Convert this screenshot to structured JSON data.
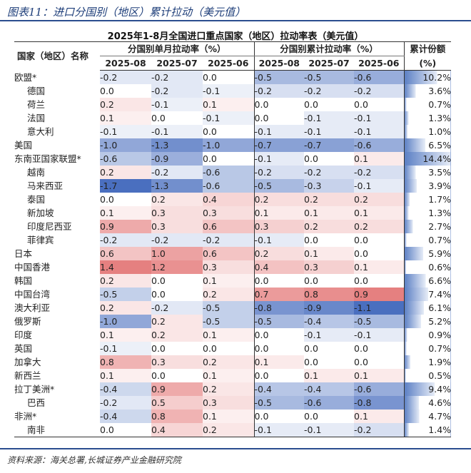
{
  "figure_title": "图表11：进口分国别（地区）累计拉动（美元值）",
  "table_title": "2025年1-8月全国进口重点国家（地区）拉动率表（美元值）",
  "headers": {
    "country": "国家（地区）名称",
    "monthly_group": "分国别单月拉动率（%）",
    "cumulative_group": "分国别累计拉动率（%）",
    "share": "累计份额",
    "share_unit": "(%)",
    "months": [
      "2025-08",
      "2025-07",
      "2025-06"
    ]
  },
  "rows": [
    {
      "name": "欧盟*",
      "sub": false,
      "m": [
        "-0.2",
        "-0.2",
        "0.0"
      ],
      "c": [
        "-0.5",
        "-0.5",
        "-0.6"
      ],
      "share": "10.2%"
    },
    {
      "name": "德国",
      "sub": true,
      "m": [
        "0.0",
        "-0.2",
        "-0.1"
      ],
      "c": [
        "-0.2",
        "-0.2",
        "-0.2"
      ],
      "share": "3.6%"
    },
    {
      "name": "荷兰",
      "sub": true,
      "m": [
        "0.2",
        "-0.1",
        "0.1"
      ],
      "c": [
        "0.0",
        "0.0",
        "0.0"
      ],
      "share": "0.7%"
    },
    {
      "name": "法国",
      "sub": true,
      "m": [
        "0.1",
        "0.0",
        "-0.1"
      ],
      "c": [
        "0.0",
        "-0.1",
        "-0.1"
      ],
      "share": "1.3%"
    },
    {
      "name": "意大利",
      "sub": true,
      "m": [
        "-0.1",
        "-0.1",
        "0.0"
      ],
      "c": [
        "-0.1",
        "-0.1",
        "-0.1"
      ],
      "share": "1.0%"
    },
    {
      "name": "美国",
      "sub": false,
      "m": [
        "-1.0",
        "-1.3",
        "-1.0"
      ],
      "c": [
        "-0.7",
        "-0.7",
        "-0.6"
      ],
      "share": "6.5%"
    },
    {
      "name": "东南亚国家联盟*",
      "sub": false,
      "m": [
        "-0.6",
        "-0.9",
        "0.0"
      ],
      "c": [
        "-0.1",
        "0.0",
        "0.1"
      ],
      "share": "14.4%"
    },
    {
      "name": "越南",
      "sub": true,
      "m": [
        "0.2",
        "-0.2",
        "-0.6"
      ],
      "c": [
        "-0.2",
        "-0.2",
        "-0.2"
      ],
      "share": "3.5%"
    },
    {
      "name": "马来西亚",
      "sub": true,
      "m": [
        "-1.7",
        "-1.3",
        "-0.6"
      ],
      "c": [
        "-0.5",
        "-0.3",
        "-0.1"
      ],
      "share": "3.9%"
    },
    {
      "name": "泰国",
      "sub": true,
      "m": [
        "0.0",
        "0.2",
        "0.4"
      ],
      "c": [
        "0.2",
        "0.2",
        "0.2"
      ],
      "share": "1.7%"
    },
    {
      "name": "新加坡",
      "sub": true,
      "m": [
        "0.1",
        "0.3",
        "0.3"
      ],
      "c": [
        "0.1",
        "0.1",
        "0.1"
      ],
      "share": "1.3%"
    },
    {
      "name": "印度尼西亚",
      "sub": true,
      "m": [
        "0.9",
        "0.3",
        "0.6"
      ],
      "c": [
        "0.3",
        "0.2",
        "0.2"
      ],
      "share": "2.7%"
    },
    {
      "name": "菲律宾",
      "sub": true,
      "m": [
        "-0.2",
        "-0.2",
        "-0.2"
      ],
      "c": [
        "-0.1",
        "0.0",
        "0.0"
      ],
      "share": "0.7%"
    },
    {
      "name": "日本",
      "sub": false,
      "m": [
        "0.6",
        "1.0",
        "0.6"
      ],
      "c": [
        "0.2",
        "0.1",
        "0.0"
      ],
      "share": "5.9%"
    },
    {
      "name": "中国香港",
      "sub": false,
      "m": [
        "1.4",
        "1.2",
        "0.3"
      ],
      "c": [
        "0.4",
        "0.3",
        "0.1"
      ],
      "share": "0.6%"
    },
    {
      "name": "韩国",
      "sub": false,
      "m": [
        "0.2",
        "0.0",
        "0.1"
      ],
      "c": [
        "0.0",
        "0.0",
        "0.0"
      ],
      "share": "6.6%"
    },
    {
      "name": "中国台湾",
      "sub": false,
      "m": [
        "-0.5",
        "0.0",
        "0.2"
      ],
      "c": [
        "0.7",
        "0.8",
        "0.9"
      ],
      "share": "7.4%"
    },
    {
      "name": "澳大利亚",
      "sub": false,
      "m": [
        "0.2",
        "-0.2",
        "-0.5"
      ],
      "c": [
        "-0.8",
        "-0.9",
        "-1.1"
      ],
      "share": "6.1%"
    },
    {
      "name": "俄罗斯",
      "sub": false,
      "m": [
        "-1.0",
        "0.2",
        "-0.5"
      ],
      "c": [
        "-0.5",
        "-0.4",
        "-0.5"
      ],
      "share": "5.2%"
    },
    {
      "name": "印度",
      "sub": false,
      "m": [
        "0.1",
        "0.2",
        "0.1"
      ],
      "c": [
        "0.0",
        "-0.1",
        "-0.1"
      ],
      "share": "0.9%"
    },
    {
      "name": "英国",
      "sub": false,
      "m": [
        "-0.1",
        "0.0",
        "0.0"
      ],
      "c": [
        "0.0",
        "0.0",
        "0.0"
      ],
      "share": "0.7%"
    },
    {
      "name": "加拿大",
      "sub": false,
      "m": [
        "0.8",
        "0.3",
        "0.2"
      ],
      "c": [
        "0.1",
        "0.0",
        "0.0"
      ],
      "share": "1.9%"
    },
    {
      "name": "新西兰",
      "sub": false,
      "m": [
        "0.1",
        "0.0",
        "0.1"
      ],
      "c": [
        "0.0",
        "0.1",
        "0.1"
      ],
      "share": "0.5%"
    },
    {
      "name": "拉丁美洲*",
      "sub": false,
      "m": [
        "-0.4",
        "0.9",
        "0.2"
      ],
      "c": [
        "-0.4",
        "-0.4",
        "-0.6"
      ],
      "share": "9.4%"
    },
    {
      "name": "巴西",
      "sub": true,
      "m": [
        "-0.2",
        "0.5",
        "0.3"
      ],
      "c": [
        "-0.5",
        "-0.6",
        "-0.8"
      ],
      "share": "4.6%"
    },
    {
      "name": "非洲*",
      "sub": false,
      "m": [
        "-0.4",
        "0.8",
        "0.1"
      ],
      "c": [
        "0.0",
        "0.0",
        "0.1"
      ],
      "share": "4.7%"
    },
    {
      "name": "南非",
      "sub": true,
      "m": [
        "0.0",
        "0.4",
        "0.2"
      ],
      "c": [
        "-0.1",
        "-0.1",
        "-0.2"
      ],
      "share": "1.4%"
    }
  ],
  "share_bar_color": "#5b7fc4",
  "positive_color": "#e06666",
  "negative_color": "#4a6fbf",
  "source": "资料来源：海关总署,长城证券产业金融研究院"
}
